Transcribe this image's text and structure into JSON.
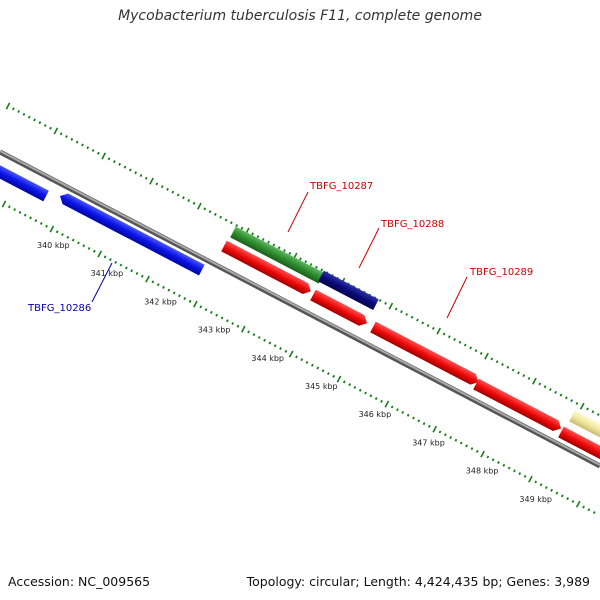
{
  "title": "Mycobacterium tuberculosis F11, complete genome",
  "footer": {
    "accession": "Accession: NC_009565",
    "summary": "Topology: circular; Length: 4,424,435 bp; Genes: 3,989"
  },
  "ticks": [
    {
      "kbp": 340,
      "label": "340 kbp"
    },
    {
      "kbp": 341,
      "label": "341 kbp"
    },
    {
      "kbp": 342,
      "label": "342 kbp"
    },
    {
      "kbp": 343,
      "label": "343 kbp"
    },
    {
      "kbp": 344,
      "label": "344 kbp"
    },
    {
      "kbp": 345,
      "label": "345 kbp"
    },
    {
      "kbp": 346,
      "label": "346 kbp"
    },
    {
      "kbp": 347,
      "label": "347 kbp"
    },
    {
      "kbp": 348,
      "label": "348 kbp"
    },
    {
      "kbp": 349,
      "label": "349 kbp"
    }
  ],
  "gene_labels": {
    "g10286": "TBFG_10286",
    "g10287": "TBFG_10287",
    "g10288": "TBFG_10288",
    "g10289": "TBFG_10289"
  },
  "colors": {
    "blue": "#0a14e6",
    "green": "#2e8b2e",
    "navy": "#0a0a7a",
    "red": "#ee0a0a",
    "yellow": "#f0e6a0",
    "backbone": "#888888",
    "tick": "#1a7a1a",
    "label_red": "#cc0000",
    "label_blue": "#0000aa"
  }
}
